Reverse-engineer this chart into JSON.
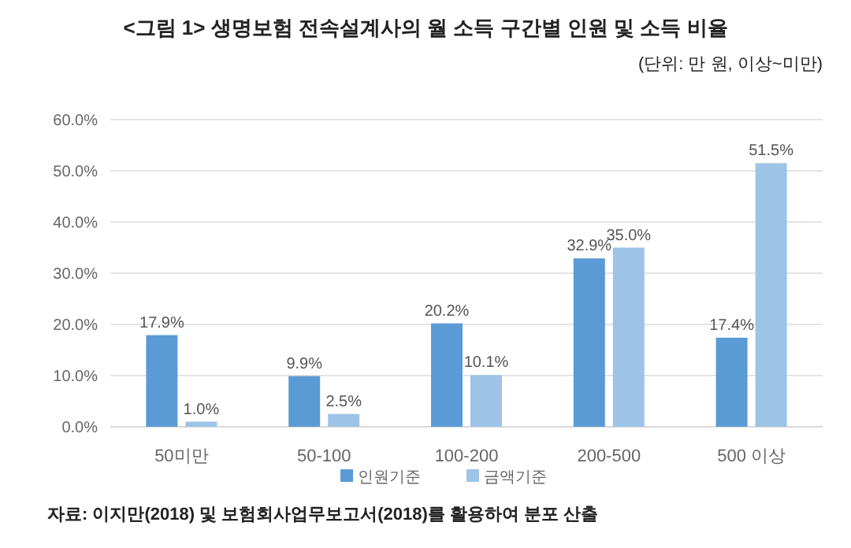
{
  "chart_data": {
    "type": "bar",
    "title": "<그림 1> 생명보험 전속설계사의 월 소득 구간별 인원 및 소득 비율",
    "subtitle": "(단위: 만 원, 이상~미만)",
    "categories": [
      "50미만",
      "50-100",
      "100-200",
      "200-500",
      "500 이상"
    ],
    "series": [
      {
        "name": "인원기준",
        "color": "#5b9bd5",
        "values": [
          17.9,
          9.9,
          20.2,
          32.9,
          17.4
        ],
        "value_labels": [
          "17.9%",
          "9.9%",
          "20.2%",
          "32.9%",
          "17.4%"
        ]
      },
      {
        "name": "금액기준",
        "color": "#9dc3e6",
        "values": [
          1.0,
          2.5,
          10.1,
          35.0,
          51.5
        ],
        "value_labels": [
          "1.0%",
          "2.5%",
          "10.1%",
          "35.0%",
          "51.5%"
        ]
      }
    ],
    "ylim": [
      0,
      60
    ],
    "yticks": [
      {
        "value": 0,
        "label": "0.0%"
      },
      {
        "value": 10,
        "label": "10.0%"
      },
      {
        "value": 20,
        "label": "20.0%"
      },
      {
        "value": 30,
        "label": "30.0%"
      },
      {
        "value": 40,
        "label": "40.0%"
      },
      {
        "value": 50,
        "label": "50.0%"
      },
      {
        "value": 60,
        "label": "60.0%"
      }
    ],
    "grid": "y",
    "legend": "bottom",
    "annotations": [
      "자료: 이지만(2018) 및 보험회사업무보고서(2018)를 활용하여 분포 산출"
    ]
  }
}
